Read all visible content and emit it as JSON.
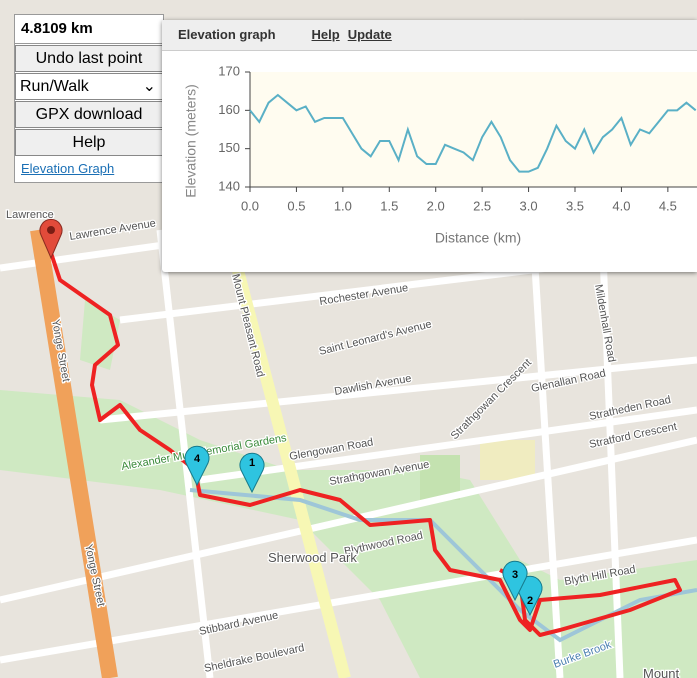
{
  "controls": {
    "distance": "4.8109 km",
    "undo": "Undo last point",
    "mode": "Run/Walk",
    "gpx": "GPX download",
    "help": "Help",
    "elevation_link": "Elevation Graph"
  },
  "elevation_panel": {
    "title": "Elevation graph",
    "help": "Help",
    "update": "Update"
  },
  "chart_data": {
    "type": "line",
    "x_label": "Distance (km)",
    "y_label": "Elevation (meters)",
    "color": "#5ab0c6",
    "x": [
      0,
      0.1,
      0.2,
      0.3,
      0.4,
      0.5,
      0.6,
      0.7,
      0.8,
      0.9,
      1.0,
      1.1,
      1.2,
      1.3,
      1.4,
      1.5,
      1.6,
      1.7,
      1.8,
      1.9,
      2.0,
      2.1,
      2.2,
      2.3,
      2.4,
      2.5,
      2.6,
      2.7,
      2.8,
      2.9,
      3.0,
      3.1,
      3.2,
      3.3,
      3.4,
      3.5,
      3.6,
      3.7,
      3.8,
      3.9,
      4.0,
      4.1,
      4.2,
      4.3,
      4.4,
      4.5,
      4.6,
      4.7,
      4.8
    ],
    "values": [
      160,
      157,
      162,
      164,
      162,
      160,
      161,
      157,
      158,
      158,
      158,
      154,
      150,
      148,
      152,
      152,
      147,
      155,
      148,
      146,
      146,
      151,
      150,
      149,
      147,
      153,
      157,
      153,
      147,
      144,
      144,
      145,
      150,
      156,
      152,
      150,
      155,
      149,
      153,
      155,
      158,
      151,
      155,
      154,
      157,
      160,
      160,
      162,
      160
    ],
    "xlim": [
      0,
      4.9
    ],
    "ylim": [
      140,
      170
    ],
    "xticks": [
      {
        "value": 0,
        "label": "0.0"
      },
      0.5,
      {
        "value": 1,
        "label": "1.0"
      },
      1.5,
      {
        "value": 2,
        "label": "2.0"
      },
      2.5,
      {
        "value": 3,
        "label": "3.0"
      },
      3.5,
      {
        "value": 4,
        "label": "4.0"
      },
      4.5
    ],
    "yticks": [
      140,
      150,
      160,
      170
    ]
  },
  "map": {
    "labels": [
      "Lawrence",
      "Lawrence Avenue",
      "Yonge Street",
      "Mount Pleasant Road",
      "Rochester Avenue",
      "Saint Leonard's Avenue",
      "Dawlish Avenue",
      "Glengowan Road",
      "Strathgowan Avenue",
      "Strathgowan Crescent",
      "Glenallan Road",
      "Stratheden Road",
      "Stratford Crescent",
      "Blythwood Road",
      "Sherwood Park",
      "Alexander Muir Memorial Gardens",
      "Blyth Hill Road",
      "Stibbard Avenue",
      "Sheldrake Boulevard",
      "Burke Brook",
      "Mildenhall Road",
      "Yonge Street",
      "Mount"
    ],
    "markers": [
      "1",
      "2",
      "3",
      "4"
    ]
  }
}
